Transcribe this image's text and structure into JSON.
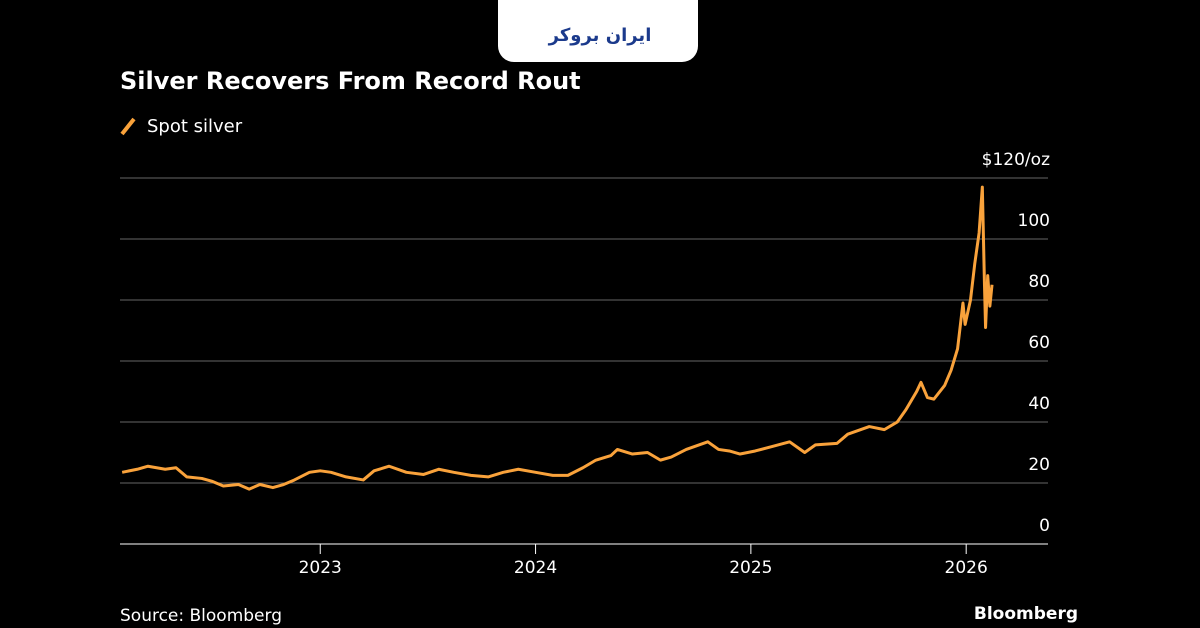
{
  "brand": "ایران بروکر",
  "chart_data": {
    "type": "line",
    "title": "Silver Recovers From Record Rout",
    "source": "Source: Bloomberg",
    "credit": "Bloomberg",
    "x": [
      2022.08,
      2022.15,
      2022.2,
      2022.28,
      2022.33,
      2022.38,
      2022.45,
      2022.5,
      2022.55,
      2022.62,
      2022.67,
      2022.72,
      2022.78,
      2022.83,
      2022.88,
      2022.95,
      2023.0,
      2023.05,
      2023.12,
      2023.2,
      2023.25,
      2023.32,
      2023.4,
      2023.48,
      2023.55,
      2023.62,
      2023.7,
      2023.78,
      2023.85,
      2023.92,
      2024.0,
      2024.08,
      2024.15,
      2024.22,
      2024.28,
      2024.35,
      2024.38,
      2024.45,
      2024.52,
      2024.58,
      2024.63,
      2024.7,
      2024.8,
      2024.85,
      2024.9,
      2024.95,
      2025.02,
      2025.1,
      2025.18,
      2025.25,
      2025.3,
      2025.4,
      2025.45,
      2025.55,
      2025.62,
      2025.68,
      2025.72,
      2025.77,
      2025.79,
      2025.82,
      2025.85,
      2025.9,
      2025.93,
      2025.96,
      2025.985,
      2025.995,
      2026.02,
      2026.04,
      2026.06,
      2026.075,
      2026.085,
      2026.09,
      2026.1,
      2026.11,
      2026.12
    ],
    "series": [
      {
        "name": "Spot silver",
        "color": "#f9a23b",
        "values": [
          23.5,
          24.5,
          25.5,
          24.5,
          25,
          22,
          21.5,
          20.5,
          19,
          19.5,
          18,
          19.5,
          18.5,
          19.5,
          21,
          23.5,
          24,
          23.5,
          22,
          21,
          24,
          25.5,
          23.5,
          22.8,
          24.5,
          23.5,
          22.5,
          22,
          23.5,
          24.5,
          23.5,
          22.5,
          22.5,
          25,
          27.5,
          29,
          31,
          29.5,
          30,
          27.5,
          28.5,
          31,
          33.5,
          31,
          30.5,
          29.5,
          30.5,
          32,
          33.5,
          30,
          32.5,
          33,
          36,
          38.5,
          37.5,
          40,
          44,
          50,
          53,
          48,
          47.5,
          52,
          57,
          64,
          79,
          72,
          80,
          92,
          102,
          117,
          85,
          71,
          88,
          78,
          85
        ]
      }
    ],
    "xlim": [
      2022.07,
      2026.38
    ],
    "xticks": [
      2023,
      2024,
      2025,
      2026
    ],
    "ylim": [
      0,
      120
    ],
    "yticks": [
      0,
      20,
      40,
      60,
      80,
      100,
      {
        "value": 120,
        "label": "$120/oz"
      }
    ],
    "grid": true
  }
}
